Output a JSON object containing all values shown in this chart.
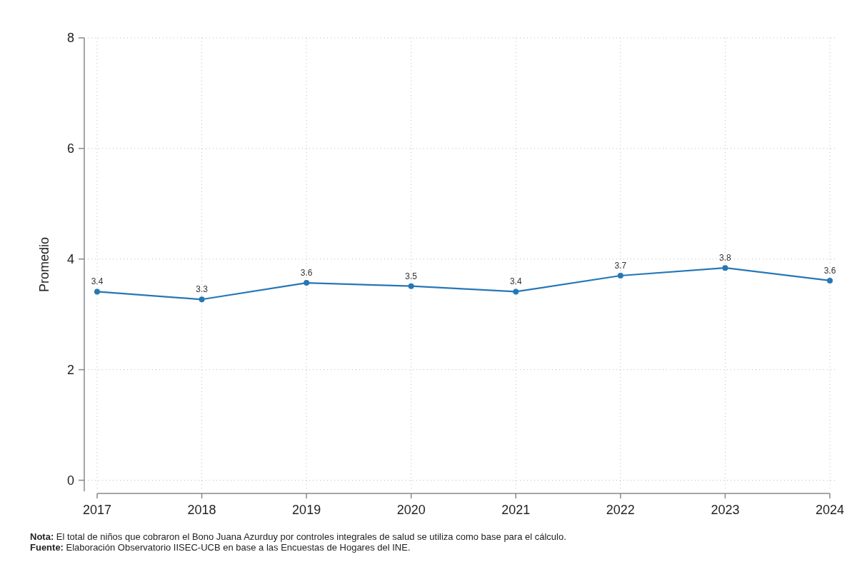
{
  "chart_data": {
    "type": "line",
    "ylabel": "Promedio",
    "categories": [
      "2017",
      "2018",
      "2019",
      "2020",
      "2021",
      "2022",
      "2023",
      "2024"
    ],
    "series": [
      {
        "color": "#2677b6",
        "values": [
          3.41,
          3.27,
          3.57,
          3.51,
          3.41,
          3.7,
          3.84,
          3.61
        ],
        "value_labels": [
          "3.4",
          "3.3",
          "3.6",
          "3.5",
          "3.4",
          "3.7",
          "3.8",
          "3.6"
        ]
      }
    ],
    "ylim": [
      -0.2,
      8
    ],
    "yticks": [
      0,
      2,
      4,
      6,
      8
    ],
    "grid": true,
    "marker": "circle",
    "line_style": "solid",
    "annotations": [
      "Nota: El total de niños que cobraron el Bono Juana Azurduy por controles integrales de salud se utiliza como base para el cálculo.",
      "Fuente: Elaboración Observatorio IISEC-UCB en base a las Encuestas de Hogares del INE."
    ]
  }
}
